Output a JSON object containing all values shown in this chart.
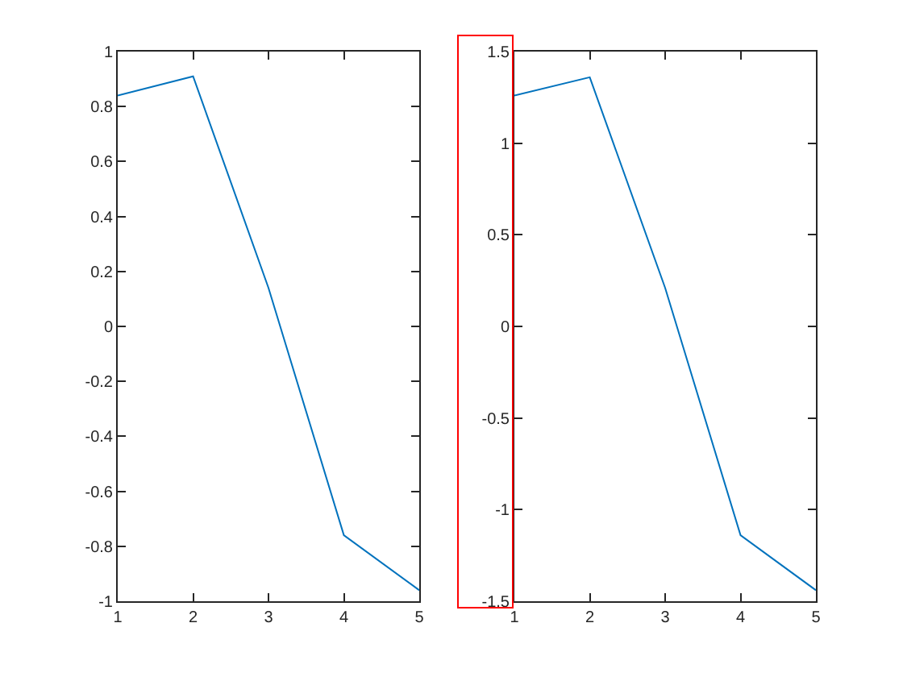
{
  "chart_data": [
    {
      "type": "line",
      "x": [
        1,
        2,
        3,
        4,
        5
      ],
      "values": [
        0.84,
        0.91,
        0.14,
        -0.76,
        -0.96
      ],
      "color": "#0072bd",
      "xlim": [
        1,
        5
      ],
      "xticks": [
        1,
        2,
        3,
        4,
        5
      ],
      "ylim": [
        -1,
        1
      ],
      "yticks": [
        -1,
        -0.8,
        -0.6,
        -0.4,
        -0.2,
        0,
        0.2,
        0.4,
        0.6,
        0.8,
        1
      ]
    },
    {
      "type": "line",
      "x": [
        1,
        2,
        3,
        4,
        5
      ],
      "values": [
        1.26,
        1.36,
        0.21,
        -1.14,
        -1.44
      ],
      "color": "#0072bd",
      "xlim": [
        1,
        5
      ],
      "xticks": [
        1,
        2,
        3,
        4,
        5
      ],
      "ylim": [
        -1.5,
        1.5
      ],
      "yticks": [
        -1.5,
        -1,
        -0.5,
        0,
        0.5,
        1,
        1.5
      ]
    }
  ]
}
